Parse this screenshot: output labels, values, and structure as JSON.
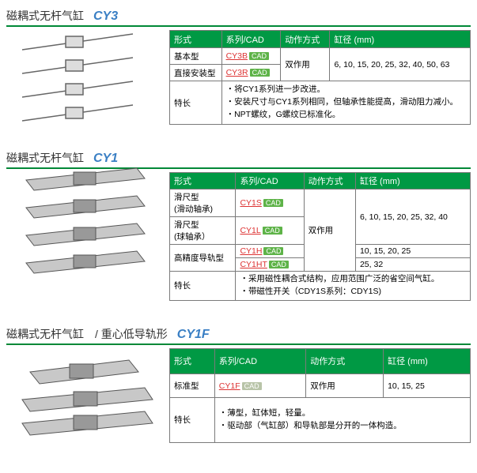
{
  "sections": [
    {
      "title_cn": "磁耦式无杆气缸",
      "title_en": "CY3",
      "headers": [
        "形式",
        "系列/CAD",
        "动作方式",
        "缸径 (mm)"
      ],
      "rows": [
        {
          "name": "基本型",
          "series": "CY3B",
          "cad": true,
          "action": null,
          "bore": null
        },
        {
          "name": "直接安装型",
          "series": "CY3R",
          "cad": true,
          "action": "双作用",
          "bore": "6, 10, 15, 20, 25, 32, 40, 50, 63"
        }
      ],
      "action_rowspan": 2,
      "bore_rowspan": 2,
      "feature_label": "特长",
      "features": [
        "将CY1系列进一步改进。",
        "安装尺寸与CY1系列相同，但轴承性能提高，滑动阻力减小。",
        "NPT螺纹，G螺纹已标准化。"
      ]
    },
    {
      "title_cn": "磁耦式无杆气缸",
      "title_en": "CY1",
      "headers": [
        "形式",
        "系列/CAD",
        "动作方式",
        "缸径 (mm)"
      ],
      "rows": [
        {
          "name": "滑尺型\n(滑动轴承)",
          "series": "CY1S",
          "cad": true,
          "action": null,
          "bore": null
        },
        {
          "name": "滑尺型\n(球轴承）",
          "series": "CY1L",
          "cad": true,
          "action": "双作用",
          "bore": "6, 10, 15, 20, 25, 32, 40"
        },
        {
          "name": "高精度导轨型",
          "series": "CY1H",
          "cad": true,
          "action": null,
          "bore": "10, 15, 20, 25"
        },
        {
          "name": "",
          "series": "CY1HT",
          "cad": true,
          "action": null,
          "bore": "25, 32"
        }
      ],
      "action_rowspan": 4,
      "bore_rowspan": 2,
      "feature_label": "特长",
      "features": [
        "采用磁性耦合式结构，应用范围广泛的省空间气缸。",
        "带磁性开关（CDY1S系列：CDY1S)"
      ]
    },
    {
      "title_cn": "磁耦式无杆气缸　/ 重心低导轨形",
      "title_en": "CY1F",
      "headers": [
        "形式",
        "系列/CAD",
        "动作方式",
        "缸径 (mm)"
      ],
      "rows": [
        {
          "name": "标准型",
          "series": "CY1F",
          "cad": true,
          "action": "双作用",
          "bore": "10, 15, 25"
        }
      ],
      "action_rowspan": 1,
      "bore_rowspan": 1,
      "feature_label": "特长",
      "features": [
        "薄型，缸体短，轻量。",
        "驱动部（气缸部）和导轨部是分开的一体构造。"
      ]
    }
  ]
}
